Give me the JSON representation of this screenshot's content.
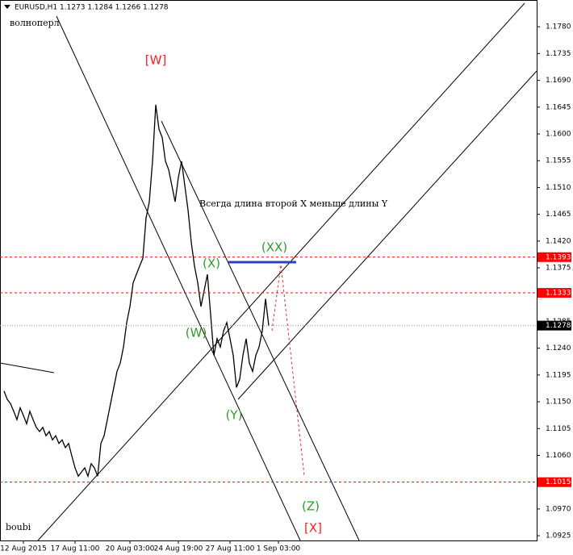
{
  "chart_data": {
    "type": "line",
    "title": "EURUSD,H1  1.1273 1.1284 1.1266 1.1278",
    "subtitle": "волноперл",
    "footer": "boubi",
    "annotation": "Всегда длина второй X меньше длины Y",
    "wave_labels": [
      {
        "text": "[W]",
        "color": "#ff2020"
      },
      {
        "text": "(X)",
        "color": "#2e9a2e"
      },
      {
        "text": "(W)",
        "color": "#2e9a2e"
      },
      {
        "text": "(Y)",
        "color": "#2e9a2e"
      },
      {
        "text": "(XX)",
        "color": "#2e9a2e"
      },
      {
        "text": "(Z)",
        "color": "#2e9a2e"
      },
      {
        "text": "[X]",
        "color": "#ff2020"
      }
    ],
    "categories": [
      null,
      null,
      null,
      null,
      null,
      null,
      "12 Aug 2015",
      null,
      null,
      null,
      null,
      null,
      null,
      null,
      null,
      null,
      null,
      null,
      null,
      null,
      null,
      null,
      "17 Aug 11:00",
      null,
      null,
      null,
      null,
      null,
      null,
      null,
      null,
      null,
      null,
      null,
      null,
      null,
      null,
      null,
      null,
      "20 Aug 03:00",
      null,
      null,
      null,
      null,
      null,
      null,
      null,
      null,
      null,
      null,
      null,
      null,
      null,
      null,
      "24 Aug 19:00",
      null,
      null,
      null,
      null,
      null,
      null,
      null,
      null,
      null,
      null,
      null,
      null,
      null,
      null,
      null,
      "27 Aug 11:00",
      null,
      null,
      null,
      null,
      null,
      null,
      null,
      null,
      null,
      null,
      null,
      null,
      null,
      null,
      "1 Sep 03:00"
    ],
    "series": [
      {
        "name": "EURUSD",
        "color": "#000000",
        "values": [
          1.1168,
          1.1154,
          1.1147,
          1.1134,
          1.112,
          1.114,
          1.1127,
          1.1113,
          1.1134,
          1.112,
          1.1107,
          1.11,
          1.1107,
          1.1093,
          1.11,
          1.1086,
          1.1093,
          1.108,
          1.1086,
          1.1073,
          1.108,
          1.1059,
          1.1039,
          1.1025,
          1.1032,
          1.1039,
          1.1025,
          1.1046,
          1.1039,
          1.1025,
          1.108,
          1.1093,
          1.112,
          1.1147,
          1.1174,
          1.1201,
          1.1215,
          1.1242,
          1.1283,
          1.131,
          1.135,
          1.1364,
          1.1378,
          1.1391,
          1.1459,
          1.1486,
          1.1554,
          1.1649,
          1.1608,
          1.1594,
          1.1554,
          1.154,
          1.1513,
          1.1486,
          1.1527,
          1.1554,
          1.1513,
          1.1472,
          1.1418,
          1.1378,
          1.135,
          1.131,
          1.1337,
          1.1364,
          1.1296,
          1.1228,
          1.1256,
          1.1242,
          1.1269,
          1.1283,
          1.1256,
          1.1228,
          1.1174,
          1.1188,
          1.1228,
          1.1256,
          1.1215,
          1.1201,
          1.1228,
          1.1242,
          1.1269,
          1.1323,
          1.1278,
          null,
          null,
          null
        ]
      }
    ],
    "levels": [
      {
        "value": 1.1393,
        "color": "#ff0000"
      },
      {
        "value": 1.1333,
        "color": "#ff0000"
      },
      {
        "value": 1.1015,
        "color": "#ff0000"
      },
      {
        "value": 1.1278,
        "color": "#000000"
      }
    ],
    "ylim": [
      1.0917,
      1.1825
    ],
    "yticks": [
      {
        "value": 1.178,
        "label": "1.1780"
      },
      1.1735,
      {
        "value": 1.169,
        "label": "1.1690"
      },
      1.1645,
      {
        "value": 1.16,
        "label": "1.1600"
      },
      1.1555,
      {
        "value": 1.151,
        "label": "1.1510"
      },
      1.1465,
      {
        "value": 1.142,
        "label": "1.1420"
      },
      1.1375,
      1.1285,
      {
        "value": 1.124,
        "label": "1.1240"
      },
      1.1195,
      {
        "value": 1.115,
        "label": "1.1150"
      },
      1.1105,
      {
        "value": 1.106,
        "label": "1.1060"
      },
      {
        "value": 1.097,
        "label": "1.0970"
      },
      1.0925
    ],
    "grid": false
  }
}
